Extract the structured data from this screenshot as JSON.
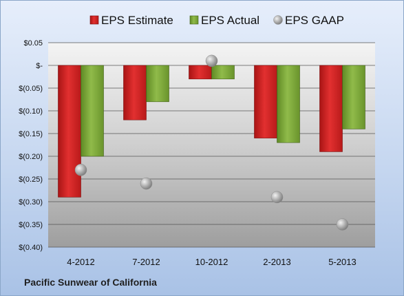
{
  "company_label": "Pacific Sunwear of California",
  "chart_data": {
    "type": "bar",
    "title": "",
    "xlabel": "",
    "ylabel": "",
    "categories": [
      "4-2012",
      "7-2012",
      "10-2012",
      "2-2013",
      "5-2013"
    ],
    "series": [
      {
        "name": "EPS Estimate",
        "kind": "bar",
        "color": "#d42a2a",
        "values": [
          -0.29,
          -0.12,
          -0.03,
          -0.16,
          -0.19
        ]
      },
      {
        "name": "EPS Actual",
        "kind": "bar",
        "color": "#7fa83a",
        "values": [
          -0.2,
          -0.08,
          -0.03,
          -0.17,
          -0.14
        ]
      },
      {
        "name": "EPS GAAP",
        "kind": "scatter",
        "color": "#a8a8a8",
        "values": [
          -0.23,
          -0.26,
          0.01,
          -0.29,
          -0.35
        ]
      }
    ],
    "ylim": [
      -0.4,
      0.05
    ],
    "y_ticks": [
      0.05,
      0,
      -0.05,
      -0.1,
      -0.15,
      -0.2,
      -0.25,
      -0.3,
      -0.35,
      -0.4
    ],
    "y_tick_labels": [
      "$0.05",
      "$-",
      "$(0.05)",
      "$(0.10)",
      "$(0.15)",
      "$(0.20)",
      "$(0.25)",
      "$(0.30)",
      "$(0.35)",
      "$(0.40)"
    ],
    "grid": true,
    "legend_position": "top"
  }
}
